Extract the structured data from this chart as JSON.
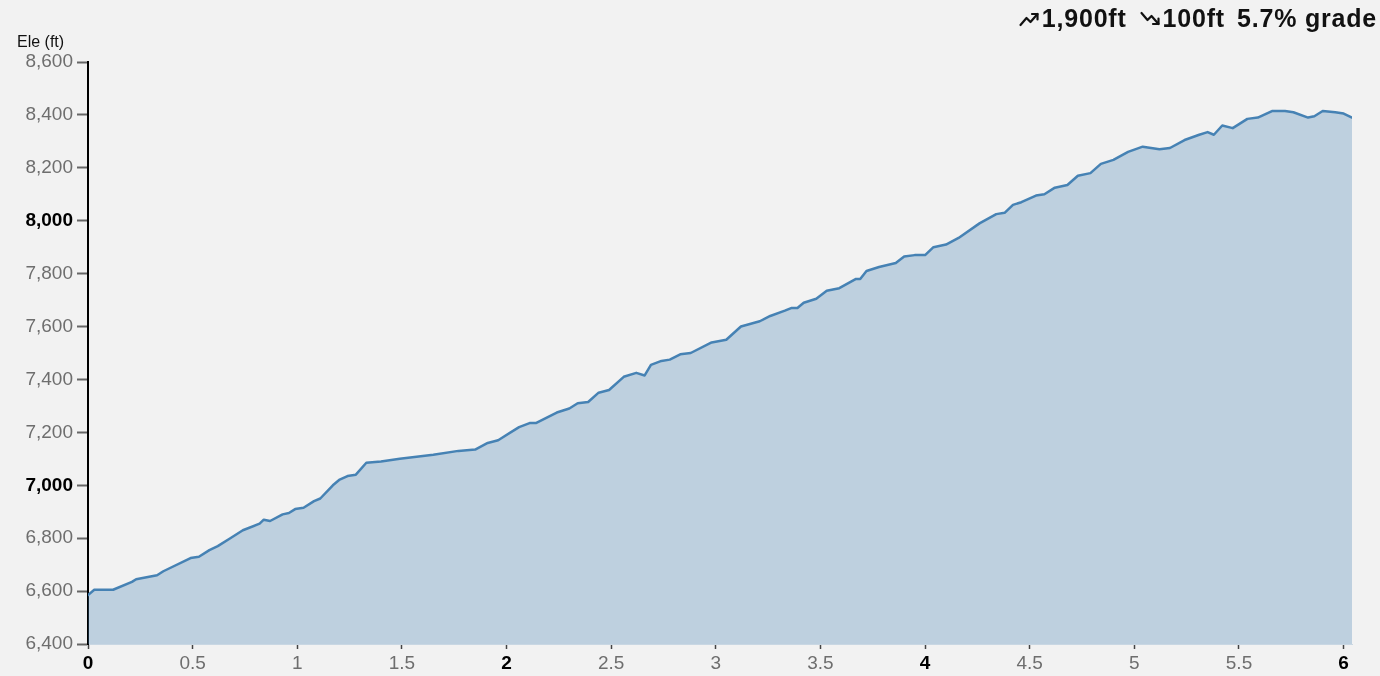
{
  "chart_data": {
    "type": "area",
    "ylabel": "Ele (ft)",
    "annotations": [
      "1,900ft",
      "100ft",
      "5.7% grade"
    ],
    "color": "#4682b4",
    "x": [
      0,
      0.03,
      0.12,
      0.21,
      0.23,
      0.33,
      0.36,
      0.49,
      0.53,
      0.58,
      0.62,
      0.68,
      0.74,
      0.82,
      0.84,
      0.87,
      0.93,
      0.96,
      0.99,
      1.03,
      1.08,
      1.11,
      1.17,
      1.2,
      1.24,
      1.28,
      1.33,
      1.4,
      1.49,
      1.65,
      1.77,
      1.85,
      1.91,
      1.96,
      2.06,
      2.11,
      2.14,
      2.19,
      2.24,
      2.3,
      2.34,
      2.39,
      2.44,
      2.49,
      2.56,
      2.62,
      2.66,
      2.69,
      2.74,
      2.78,
      2.83,
      2.88,
      2.98,
      3.05,
      3.12,
      3.21,
      3.26,
      3.33,
      3.36,
      3.39,
      3.42,
      3.48,
      3.53,
      3.59,
      3.67,
      3.69,
      3.72,
      3.78,
      3.86,
      3.9,
      3.95,
      4.0,
      4.04,
      4.1,
      4.16,
      4.26,
      4.34,
      4.38,
      4.42,
      4.46,
      4.53,
      4.57,
      4.62,
      4.68,
      4.73,
      4.79,
      4.84,
      4.9,
      4.97,
      5.04,
      5.12,
      5.17,
      5.24,
      5.31,
      5.35,
      5.38,
      5.42,
      5.47,
      5.54,
      5.59,
      5.66,
      5.72,
      5.76,
      5.83,
      5.86,
      5.9,
      5.96,
      6.0,
      6.04
    ],
    "values": [
      6585,
      6605,
      6605,
      6635,
      6645,
      6660,
      6675,
      6725,
      6730,
      6755,
      6770,
      6800,
      6830,
      6855,
      6870,
      6865,
      6890,
      6895,
      6910,
      6915,
      6940,
      6950,
      7000,
      7020,
      7035,
      7040,
      7085,
      7090,
      7100,
      7115,
      7130,
      7135,
      7160,
      7170,
      7220,
      7235,
      7235,
      7255,
      7275,
      7290,
      7310,
      7315,
      7350,
      7360,
      7410,
      7425,
      7415,
      7455,
      7470,
      7475,
      7495,
      7500,
      7540,
      7550,
      7600,
      7620,
      7640,
      7660,
      7670,
      7670,
      7690,
      7705,
      7735,
      7745,
      7780,
      7780,
      7810,
      7825,
      7840,
      7865,
      7870,
      7870,
      7900,
      7910,
      7935,
      7990,
      8025,
      8030,
      8060,
      8070,
      8095,
      8100,
      8125,
      8135,
      8170,
      8180,
      8215,
      8230,
      8260,
      8280,
      8270,
      8275,
      8305,
      8325,
      8335,
      8325,
      8360,
      8350,
      8385,
      8390,
      8415,
      8415,
      8410,
      8390,
      8395,
      8415,
      8410,
      8405,
      8390
    ],
    "xlim": [
      0,
      6.04
    ],
    "xticks": [
      0,
      0.5,
      1,
      1.5,
      2,
      2.5,
      3,
      3.5,
      4,
      4.5,
      5,
      5.5,
      6
    ],
    "ylim": [
      6400,
      8600
    ],
    "yticks": [
      {
        "value": 6400,
        "label": "6,400"
      },
      {
        "value": 6600,
        "label": "6,600"
      },
      {
        "value": 6800,
        "label": "6,800"
      },
      {
        "value": 7000,
        "label": "7,000"
      },
      {
        "value": 7200,
        "label": "7,200"
      },
      {
        "value": 7400,
        "label": "7,400"
      },
      {
        "value": 7600,
        "label": "7,600"
      },
      {
        "value": 7800,
        "label": "7,800"
      },
      {
        "value": 8000,
        "label": "8,000"
      },
      {
        "value": 8200,
        "label": "8,200"
      },
      {
        "value": 8400,
        "label": "8,400"
      },
      {
        "value": 8600,
        "label": "8,600"
      }
    ]
  }
}
